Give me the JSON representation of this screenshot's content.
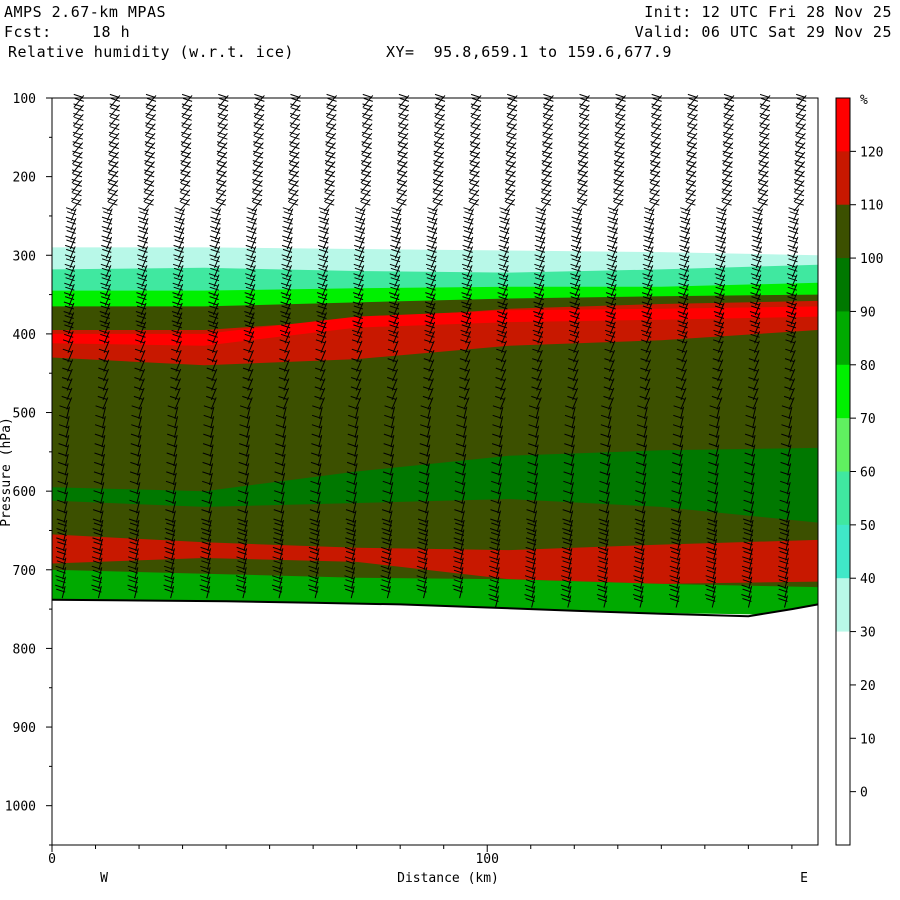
{
  "header": {
    "model": "AMPS 2.67-km MPAS",
    "fcst_label": "Fcst:",
    "fcst_value": "18 h",
    "field": "Relative humidity (w.r.t. ice)",
    "init": "Init: 12 UTC Fri 28 Nov 25",
    "valid": "Valid: 06 UTC Sat 29 Nov 25",
    "xy": "XY=  95.8,659.1 to 159.6,677.9"
  },
  "chart_data": {
    "type": "heatmap",
    "title": "Relative humidity (w.r.t. ice)",
    "xlabel": "Distance (km)",
    "ylabel": "Pressure (hPa)",
    "x_ticks": [
      "0",
      "100"
    ],
    "x_tick_values": [
      0,
      100
    ],
    "xlim": [
      0,
      176
    ],
    "y_ticks": [
      "100",
      "200",
      "300",
      "400",
      "500",
      "600",
      "700",
      "800",
      "900",
      "1000"
    ],
    "y_tick_values": [
      100,
      200,
      300,
      400,
      500,
      600,
      700,
      800,
      900,
      1000
    ],
    "ylim": [
      1050,
      100
    ],
    "direction_labels": [
      "W",
      "E"
    ],
    "colorbar": {
      "unit": "%",
      "labels": [
        "120",
        "110",
        "100",
        "90",
        "80",
        "70",
        "60",
        "50",
        "40",
        "30",
        "20",
        "10",
        "0"
      ],
      "bins": [
        {
          "min": 120,
          "color": "#ff0000"
        },
        {
          "min": 110,
          "color": "#c81800"
        },
        {
          "min": 100,
          "color": "#3c5000"
        },
        {
          "min": 90,
          "color": "#007800"
        },
        {
          "min": 80,
          "color": "#00aa00"
        },
        {
          "min": 70,
          "color": "#00f000"
        },
        {
          "min": 60,
          "color": "#60f060"
        },
        {
          "min": 50,
          "color": "#40e8a0"
        },
        {
          "min": 40,
          "color": "#40e8c8"
        },
        {
          "min": 30,
          "color": "#b8f8e8"
        },
        {
          "min": 20,
          "color": "#ffffff"
        },
        {
          "min": 10,
          "color": "#ffffff"
        },
        {
          "min": 0,
          "color": "#ffffff"
        },
        {
          "min": -10,
          "color": "#ffffff"
        }
      ]
    },
    "regions": [
      {
        "name": "rh 30-40",
        "value": 35,
        "top": [
          290,
          290,
          292,
          294,
          296,
          300
        ],
        "bottom": [
          340,
          340,
          340,
          340,
          340,
          340
        ]
      },
      {
        "name": "rh 40-60",
        "value": 50,
        "top": [
          318,
          316,
          320,
          322,
          318,
          312
        ],
        "bottom": [
          350,
          350,
          350,
          350,
          350,
          350
        ]
      },
      {
        "name": "rh 60-90",
        "value": 75,
        "top": [
          345,
          345,
          342,
          340,
          340,
          335
        ],
        "bottom": [
          372,
          372,
          368,
          362,
          360,
          355
        ]
      },
      {
        "name": "rh 100-110 bulk",
        "value": 105,
        "top": [
          365,
          365,
          360,
          355,
          352,
          350
        ],
        "bottom": [
          735,
          738,
          740,
          745,
          750,
          752
        ]
      },
      {
        "name": "rh 110-120 upper",
        "value": 115,
        "top": [
          395,
          395,
          382,
          368,
          362,
          358
        ],
        "bottom": [
          430,
          440,
          432,
          415,
          408,
          395
        ]
      },
      {
        "name": "rh 120+ core",
        "value": 125,
        "top": [
          400,
          400,
          378,
          370,
          368,
          365
        ],
        "bottom": [
          412,
          415,
          392,
          385,
          382,
          378
        ]
      },
      {
        "name": "rh 90-100 midlevel",
        "value": 95,
        "top": [
          595,
          600,
          575,
          555,
          548,
          545
        ],
        "bottom": [
          612,
          620,
          615,
          610,
          620,
          640
        ]
      },
      {
        "name": "rh 110-120 lower",
        "value": 115,
        "top": [
          655,
          665,
          672,
          675,
          668,
          662
        ],
        "bottom": [
          692,
          685,
          690,
          712,
          718,
          715
        ]
      },
      {
        "name": "rh 80-90 near sfc",
        "value": 85,
        "top": [
          700,
          705,
          710,
          712,
          718,
          722
        ],
        "bottom": [
          740,
          742,
          745,
          750,
          755,
          758
        ]
      }
    ],
    "region_x": [
      0,
      35,
      70,
      105,
      140,
      176
    ],
    "terrain_pressure": [
      738,
      739,
      740,
      742,
      744,
      748,
      752,
      756,
      759,
      750,
      744
    ],
    "terrain_x": [
      0,
      20,
      40,
      60,
      80,
      100,
      120,
      140,
      160,
      170,
      176
    ]
  }
}
